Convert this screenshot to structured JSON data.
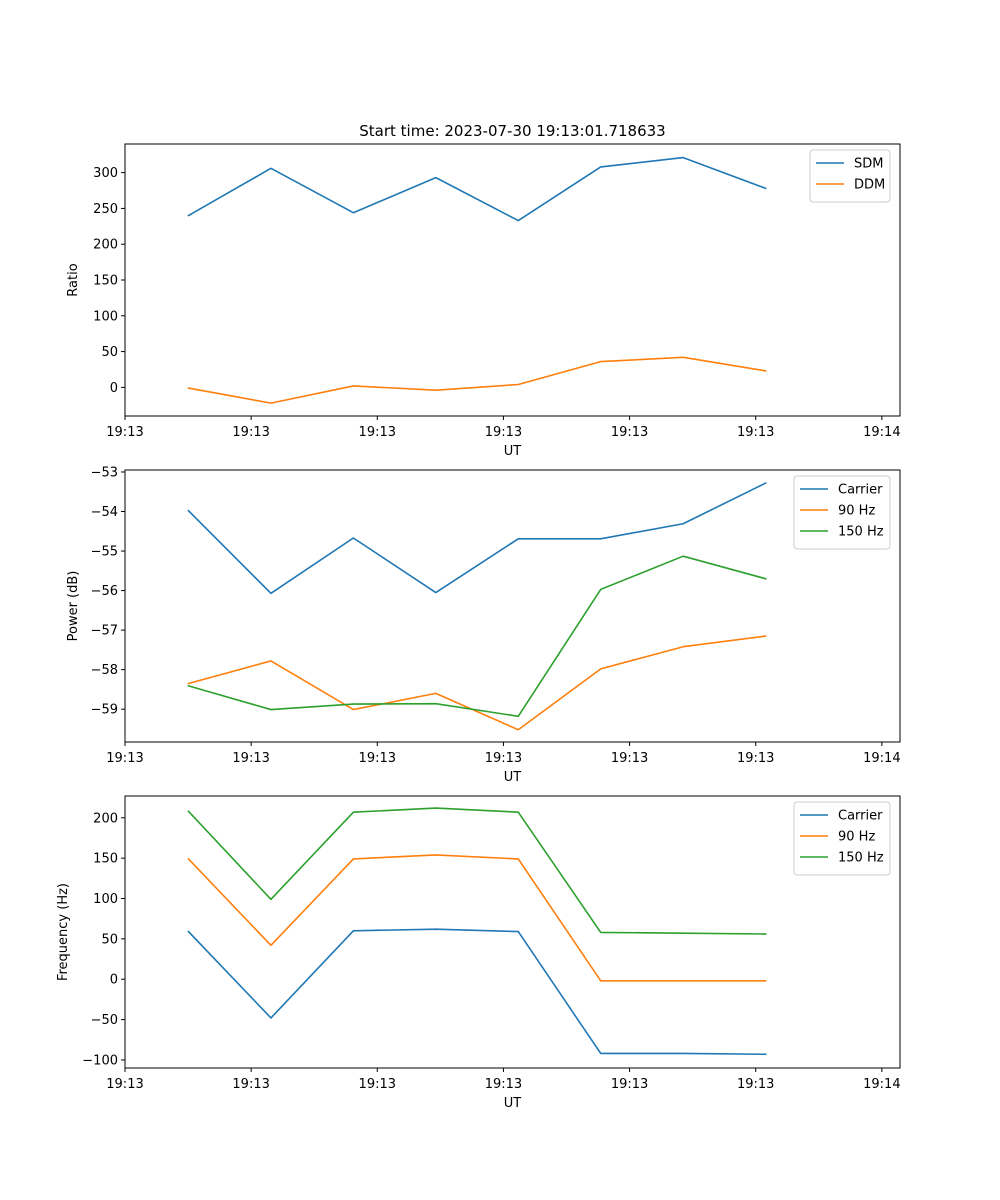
{
  "chart_data": [
    {
      "type": "line",
      "title": "Start time: 2023-07-30 19:13:01.718633",
      "xlabel": "UT",
      "ylabel": "Ratio",
      "xlim": [
        0,
        9.4
      ],
      "ylim": [
        -40,
        340
      ],
      "xticks": [
        0,
        1.53,
        3.06,
        4.59,
        6.12,
        7.65,
        9.18
      ],
      "xtick_labels": [
        "19:13",
        "19:13",
        "19:13",
        "19:13",
        "19:13",
        "19:13",
        "19:14"
      ],
      "yticks": [
        0,
        50,
        100,
        150,
        200,
        250,
        300
      ],
      "x": [
        0.77,
        1.77,
        2.77,
        3.77,
        4.77,
        5.77,
        6.77,
        7.77
      ],
      "series": [
        {
          "name": "SDM",
          "color": "#1f77b4",
          "values": [
            240,
            306,
            244,
            293,
            233,
            308,
            321,
            278
          ]
        },
        {
          "name": "DDM",
          "color": "#ff7f0e",
          "values": [
            -1,
            -22,
            2,
            -4,
            4,
            36,
            42,
            23
          ]
        }
      ],
      "legend": "top-right"
    },
    {
      "type": "line",
      "title": "",
      "xlabel": "UT",
      "ylabel": "Power (dB)",
      "xlim": [
        0,
        9.4
      ],
      "ylim": [
        -59.83,
        -52.95
      ],
      "xticks": [
        0,
        1.53,
        3.06,
        4.59,
        6.12,
        7.65,
        9.18
      ],
      "xtick_labels": [
        "19:13",
        "19:13",
        "19:13",
        "19:13",
        "19:13",
        "19:13",
        "19:14"
      ],
      "yticks": [
        -59,
        -58,
        -57,
        -56,
        -55,
        -54,
        -53
      ],
      "x": [
        0.77,
        1.77,
        2.77,
        3.77,
        4.77,
        5.77,
        6.77,
        7.77
      ],
      "series": [
        {
          "name": "Carrier",
          "color": "#1f77b4",
          "values": [
            -53.98,
            -56.07,
            -54.67,
            -56.05,
            -54.69,
            -54.69,
            -54.31,
            -53.28
          ]
        },
        {
          "name": "90 Hz",
          "color": "#ff7f0e",
          "values": [
            -58.35,
            -57.78,
            -59.01,
            -58.6,
            -59.52,
            -57.98,
            -57.42,
            -57.15
          ]
        },
        {
          "name": "150 Hz",
          "color": "#2ca02c",
          "values": [
            -58.41,
            -59.01,
            -58.87,
            -58.86,
            -59.18,
            -55.97,
            -55.13,
            -55.7
          ]
        }
      ],
      "legend": "top-right"
    },
    {
      "type": "line",
      "title": "",
      "xlabel": "UT",
      "ylabel": "Frequency (Hz)",
      "xlim": [
        0,
        9.4
      ],
      "ylim": [
        -110,
        227
      ],
      "xticks": [
        0,
        1.53,
        3.06,
        4.59,
        6.12,
        7.65,
        9.18
      ],
      "xtick_labels": [
        "19:13",
        "19:13",
        "19:13",
        "19:13",
        "19:13",
        "19:13",
        "19:14"
      ],
      "yticks": [
        -100,
        -50,
        0,
        50,
        100,
        150,
        200
      ],
      "x": [
        0.77,
        1.77,
        2.77,
        3.77,
        4.77,
        5.77,
        6.77,
        7.77
      ],
      "series": [
        {
          "name": "Carrier",
          "color": "#1f77b4",
          "values": [
            59,
            -48,
            60,
            62,
            59,
            -92,
            -92,
            -93
          ]
        },
        {
          "name": "90 Hz",
          "color": "#ff7f0e",
          "values": [
            149,
            42,
            149,
            154,
            149,
            -2,
            -2,
            -2
          ]
        },
        {
          "name": "150 Hz",
          "color": "#2ca02c",
          "values": [
            208,
            99,
            207,
            212,
            207,
            58,
            57,
            56
          ]
        }
      ],
      "legend": "top-right"
    }
  ]
}
